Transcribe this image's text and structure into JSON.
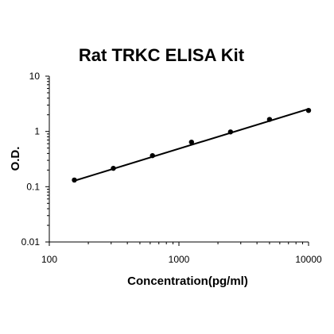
{
  "chart_data": {
    "type": "scatter",
    "title": "Rat TRKC ELISA Kit",
    "xlabel": "Concentration(pg/ml)",
    "ylabel": "O.D.",
    "x_scale": "log",
    "y_scale": "log",
    "xlim": [
      100,
      10000
    ],
    "ylim": [
      0.01,
      10
    ],
    "x_ticks": [
      "100",
      "1000",
      "10000"
    ],
    "y_ticks": [
      "10",
      "1",
      "0.1",
      "0.01"
    ],
    "grid": false,
    "legend": "none",
    "series": [
      {
        "points": [
          {
            "x": 156,
            "y": 0.132
          },
          {
            "x": 312,
            "y": 0.215
          },
          {
            "x": 625,
            "y": 0.365
          },
          {
            "x": 1250,
            "y": 0.64
          },
          {
            "x": 2500,
            "y": 0.98
          },
          {
            "x": 5000,
            "y": 1.65
          },
          {
            "x": 10000,
            "y": 2.4
          }
        ],
        "trendline": {
          "x": [
            156,
            10000
          ],
          "y": [
            0.128,
            2.55
          ]
        }
      }
    ],
    "colors": {
      "axis": "#000000",
      "marker": "#000000",
      "line": "#000000"
    }
  }
}
